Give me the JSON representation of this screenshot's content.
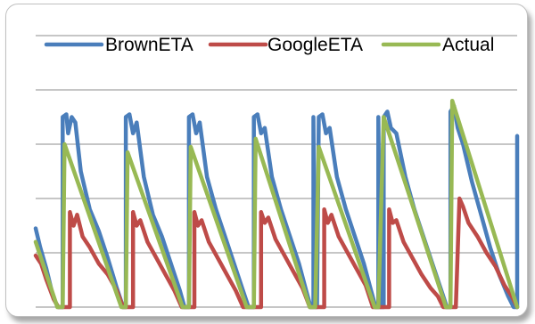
{
  "chart_data": {
    "type": "line",
    "title": "",
    "xlabel": "",
    "ylabel": "",
    "grid": true,
    "legend_placement": "top",
    "ylim": [
      0,
      5
    ],
    "colors": {
      "BrownETA": "#4a7ebb",
      "GoogleETA": "#be4b48",
      "Actual": "#98b954",
      "grid": "#8c8c8c"
    },
    "series": [
      {
        "name": "BrownETA",
        "points": [
          [
            0,
            1.45
          ],
          [
            5,
            1.1
          ],
          [
            12,
            0.7
          ],
          [
            20,
            0.15
          ],
          [
            25,
            0
          ],
          [
            30,
            0
          ],
          [
            30,
            3.5
          ],
          [
            34,
            3.55
          ],
          [
            36,
            3.2
          ],
          [
            40,
            3.5
          ],
          [
            44,
            3.4
          ],
          [
            50,
            2.5
          ],
          [
            60,
            1.8
          ],
          [
            70,
            1.4
          ],
          [
            80,
            0.9
          ],
          [
            90,
            0.35
          ],
          [
            97,
            0
          ],
          [
            100,
            0
          ],
          [
            100,
            3.5
          ],
          [
            104,
            3.55
          ],
          [
            108,
            3.2
          ],
          [
            112,
            3.4
          ],
          [
            120,
            2.4
          ],
          [
            130,
            1.7
          ],
          [
            140,
            1.3
          ],
          [
            150,
            0.8
          ],
          [
            160,
            0.3
          ],
          [
            165,
            0
          ],
          [
            170,
            0
          ],
          [
            170,
            3.5
          ],
          [
            174,
            3.55
          ],
          [
            178,
            3.2
          ],
          [
            182,
            3.4
          ],
          [
            190,
            2.4
          ],
          [
            200,
            1.8
          ],
          [
            210,
            1.3
          ],
          [
            220,
            0.8
          ],
          [
            230,
            0.3
          ],
          [
            236,
            0
          ],
          [
            242,
            0
          ],
          [
            242,
            3.5
          ],
          [
            246,
            3.55
          ],
          [
            250,
            3.2
          ],
          [
            254,
            3.3
          ],
          [
            262,
            2.4
          ],
          [
            272,
            1.8
          ],
          [
            282,
            1.3
          ],
          [
            292,
            0.8
          ],
          [
            300,
            0.3
          ],
          [
            305,
            0
          ],
          [
            308,
            0
          ],
          [
            308,
            3.5
          ],
          [
            310,
            0
          ],
          [
            312,
            0
          ],
          [
            314,
            3.5
          ],
          [
            318,
            3.55
          ],
          [
            322,
            3.2
          ],
          [
            326,
            3.3
          ],
          [
            334,
            2.4
          ],
          [
            344,
            1.8
          ],
          [
            354,
            1.3
          ],
          [
            364,
            0.8
          ],
          [
            372,
            0.3
          ],
          [
            377,
            0
          ],
          [
            380,
            0
          ],
          [
            380,
            3.5
          ],
          [
            382,
            0
          ],
          [
            386,
            0
          ],
          [
            386,
            3.5
          ],
          [
            390,
            3.6
          ],
          [
            394,
            3.3
          ],
          [
            400,
            3.2
          ],
          [
            410,
            2.4
          ],
          [
            420,
            1.8
          ],
          [
            430,
            1.3
          ],
          [
            440,
            0.8
          ],
          [
            450,
            0.3
          ],
          [
            456,
            0
          ],
          [
            460,
            0
          ],
          [
            460,
            3.6
          ],
          [
            464,
            3.7
          ],
          [
            468,
            3.3
          ],
          [
            474,
            3.0
          ],
          [
            484,
            2.3
          ],
          [
            494,
            1.7
          ],
          [
            504,
            1.1
          ],
          [
            514,
            0.6
          ],
          [
            524,
            0.2
          ],
          [
            530,
            0
          ],
          [
            534,
            0
          ],
          [
            534,
            3.15
          ]
        ]
      },
      {
        "name": "GoogleETA",
        "points": [
          [
            0,
            0.95
          ],
          [
            6,
            0.8
          ],
          [
            12,
            0.5
          ],
          [
            20,
            0.15
          ],
          [
            25,
            0
          ],
          [
            38,
            0
          ],
          [
            38,
            1.75
          ],
          [
            42,
            1.5
          ],
          [
            46,
            1.7
          ],
          [
            52,
            1.3
          ],
          [
            60,
            1.1
          ],
          [
            70,
            0.8
          ],
          [
            80,
            0.6
          ],
          [
            90,
            0.3
          ],
          [
            97,
            0
          ],
          [
            108,
            0
          ],
          [
            108,
            1.75
          ],
          [
            112,
            1.5
          ],
          [
            116,
            1.6
          ],
          [
            124,
            1.2
          ],
          [
            134,
            0.9
          ],
          [
            144,
            0.6
          ],
          [
            154,
            0.3
          ],
          [
            162,
            0
          ],
          [
            176,
            0
          ],
          [
            176,
            1.75
          ],
          [
            180,
            1.5
          ],
          [
            184,
            1.6
          ],
          [
            192,
            1.2
          ],
          [
            202,
            0.9
          ],
          [
            212,
            0.6
          ],
          [
            222,
            0.3
          ],
          [
            230,
            0
          ],
          [
            250,
            0
          ],
          [
            250,
            1.75
          ],
          [
            254,
            1.55
          ],
          [
            258,
            1.65
          ],
          [
            266,
            1.25
          ],
          [
            276,
            0.95
          ],
          [
            286,
            0.65
          ],
          [
            296,
            0.35
          ],
          [
            304,
            0
          ],
          [
            320,
            0
          ],
          [
            320,
            1.8
          ],
          [
            324,
            1.55
          ],
          [
            328,
            1.7
          ],
          [
            336,
            1.3
          ],
          [
            346,
            1.0
          ],
          [
            356,
            0.7
          ],
          [
            366,
            0.4
          ],
          [
            374,
            0
          ],
          [
            392,
            0
          ],
          [
            392,
            1.8
          ],
          [
            396,
            1.55
          ],
          [
            400,
            1.6
          ],
          [
            408,
            1.2
          ],
          [
            418,
            0.9
          ],
          [
            428,
            0.6
          ],
          [
            438,
            0.35
          ],
          [
            446,
            0.2
          ],
          [
            452,
            0
          ],
          [
            466,
            0
          ],
          [
            470,
            2.0
          ],
          [
            474,
            1.85
          ],
          [
            480,
            1.55
          ],
          [
            490,
            1.3
          ],
          [
            500,
            1.0
          ],
          [
            510,
            0.75
          ],
          [
            520,
            0.4
          ],
          [
            528,
            0.2
          ],
          [
            534,
            0
          ]
        ]
      },
      {
        "name": "Actual",
        "points": [
          [
            0,
            1.2
          ],
          [
            24,
            0
          ],
          [
            30,
            0
          ],
          [
            32,
            3.0
          ],
          [
            95,
            0
          ],
          [
            100,
            0
          ],
          [
            102,
            2.85
          ],
          [
            163,
            0
          ],
          [
            170,
            0
          ],
          [
            172,
            2.95
          ],
          [
            234,
            0
          ],
          [
            242,
            0
          ],
          [
            244,
            3.1
          ],
          [
            304,
            0
          ],
          [
            310,
            0
          ],
          [
            314,
            2.95
          ],
          [
            376,
            0
          ],
          [
            380,
            0
          ],
          [
            386,
            3.5
          ],
          [
            455,
            0
          ],
          [
            460,
            0
          ],
          [
            462,
            3.8
          ],
          [
            534,
            0
          ]
        ]
      }
    ]
  }
}
